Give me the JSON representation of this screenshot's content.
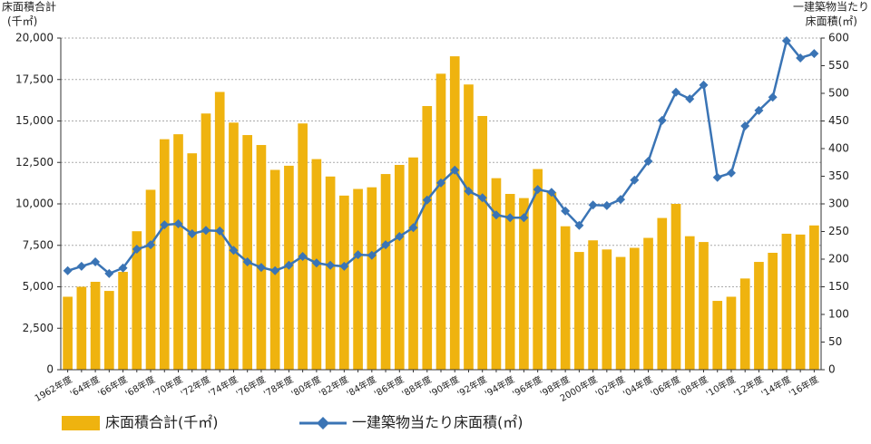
{
  "chart_data": {
    "type": "bar_line",
    "y_label": [
      "床面積合計",
      "(千㎡)"
    ],
    "y2_label": [
      "一建築物当たり",
      "床面積(㎡)"
    ],
    "categories": [
      "1962年度",
      null,
      "'64年度",
      null,
      "'66年度",
      null,
      "'68年度",
      null,
      "'70年度",
      null,
      "'72年度",
      null,
      "'74年度",
      null,
      "'76年度",
      null,
      "'78年度",
      null,
      "'80年度",
      null,
      "'82年度",
      null,
      "'84年度",
      null,
      "'86年度",
      null,
      "'88年度",
      null,
      "'90年度",
      null,
      "'92年度",
      null,
      "'94年度",
      null,
      "'96年度",
      null,
      "'98年度",
      null,
      "2000年度",
      null,
      "'02年度",
      null,
      "'04年度",
      null,
      "'06年度",
      null,
      "'08年度",
      null,
      "'10年度",
      null,
      "'12年度",
      null,
      "'14年度",
      null,
      "'16年度"
    ],
    "series": [
      {
        "name": "床面積合計(千㎡)",
        "color": "#efb30f",
        "kind": "bar",
        "axis": "y",
        "values": [
          4400,
          5000,
          5300,
          4750,
          5900,
          8350,
          10850,
          13900,
          14200,
          13050,
          15450,
          16750,
          14900,
          14150,
          13550,
          12050,
          12300,
          14850,
          12700,
          11650,
          10500,
          10900,
          11000,
          11800,
          12350,
          12800,
          15900,
          17850,
          18900,
          17200,
          15300,
          11550,
          10600,
          10350,
          12100,
          10700,
          8650,
          7100,
          7800,
          7250,
          6800,
          7350,
          7950,
          9150,
          10000,
          8050,
          7700,
          4150,
          4400,
          5500,
          6500,
          7050,
          8200,
          8150,
          8700
        ]
      },
      {
        "name": "一建築物当たり床面積(㎡)",
        "color": "#3a74b5",
        "kind": "line",
        "axis": "y2",
        "values": [
          179,
          187,
          195,
          174,
          184,
          218,
          226,
          262,
          264,
          246,
          252,
          251,
          216,
          195,
          185,
          179,
          189,
          205,
          193,
          189,
          187,
          208,
          207,
          226,
          241,
          257,
          307,
          338,
          361,
          323,
          311,
          280,
          275,
          275,
          326,
          321,
          287,
          261,
          298,
          297,
          308,
          343,
          377,
          451,
          502,
          490,
          515,
          348,
          356,
          441,
          469,
          493,
          595,
          564,
          572
        ]
      }
    ],
    "ylim": [
      0,
      20000
    ],
    "yticks": [
      0,
      {
        "value": 2500,
        "label": "2,500"
      },
      {
        "value": 5000,
        "label": "5,000"
      },
      {
        "value": 7500,
        "label": "7,500"
      },
      {
        "value": 10000,
        "label": "10,000"
      },
      {
        "value": 12500,
        "label": "12,500"
      },
      {
        "value": 15000,
        "label": "15,000"
      },
      {
        "value": 17500,
        "label": "17,500"
      },
      {
        "value": 20000,
        "label": "20,000"
      }
    ],
    "y2lim": [
      0,
      600
    ],
    "y2ticks": [
      0,
      50,
      100,
      150,
      200,
      250,
      300,
      350,
      400,
      450,
      500,
      550,
      600
    ],
    "grid": true
  }
}
